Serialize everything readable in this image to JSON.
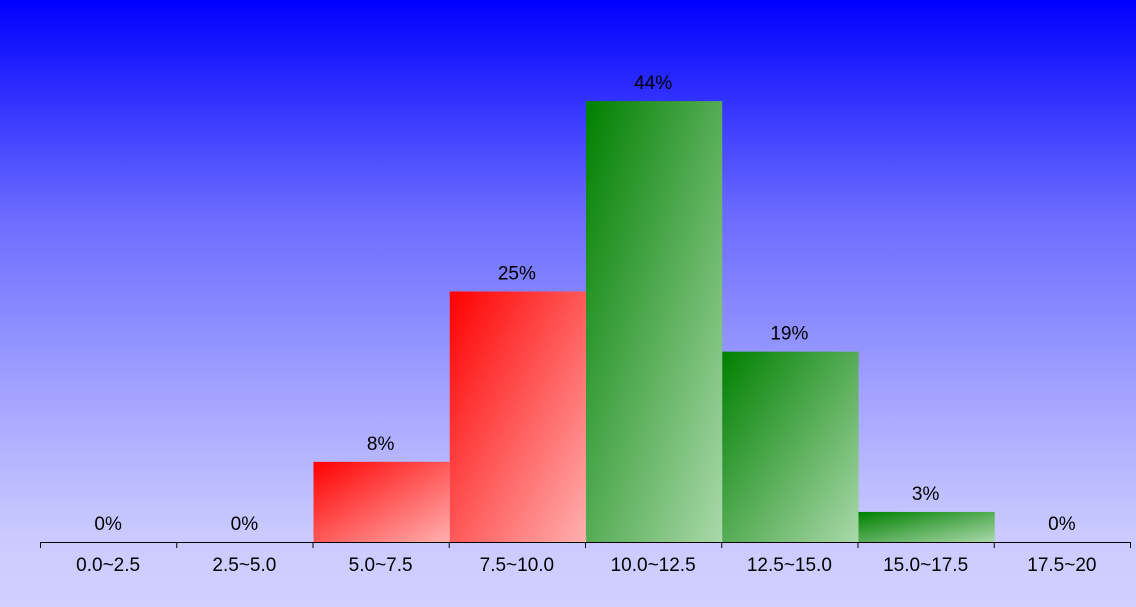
{
  "chart_data": {
    "type": "bar",
    "categories": [
      "0.0~2.5",
      "2.5~5.0",
      "5.0~7.5",
      "7.5~10.0",
      "10.0~12.5",
      "12.5~15.0",
      "15.0~17.5",
      "17.5~20"
    ],
    "values": [
      0,
      0,
      8,
      25,
      44,
      19,
      3,
      0
    ],
    "value_labels": [
      "0%",
      "0%",
      "8%",
      "25%",
      "44%",
      "19%",
      "3%",
      "0%"
    ],
    "ylim": [
      0,
      50
    ],
    "grid": false,
    "legend": "none",
    "bar_colors": [
      "#ff0000",
      "#ff0000",
      "#ff0000",
      "#ff0000",
      "#008000",
      "#008000",
      "#008000",
      "#008000"
    ],
    "bar_highlight_colors": [
      "#ffb0b0",
      "#ffb0b0",
      "#ffb0b0",
      "#ffb0b0",
      "#aad8aa",
      "#aad8aa",
      "#aad8aa",
      "#aad8aa"
    ],
    "background_top": "#0000ff",
    "background_bottom": "#d0d0ff",
    "axis_color": "#000000"
  }
}
